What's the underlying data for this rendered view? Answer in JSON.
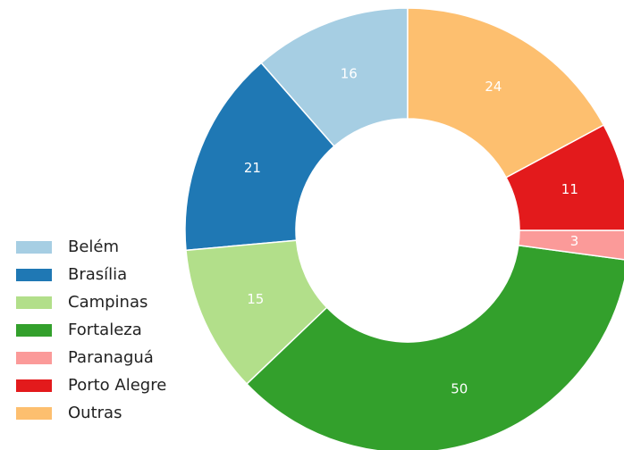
{
  "chart_data": {
    "type": "donut",
    "categories": [
      "Belém",
      "Brasília",
      "Campinas",
      "Fortaleza",
      "Paranaguá",
      "Porto Alegre",
      "Outras"
    ],
    "values": [
      16,
      21,
      15,
      50,
      3,
      11,
      24
    ],
    "colors": [
      "#a6cee3",
      "#1f78b4",
      "#b2df8a",
      "#33a02c",
      "#fb9a99",
      "#e31a1c",
      "#fdbf6f"
    ],
    "legend": "left"
  }
}
